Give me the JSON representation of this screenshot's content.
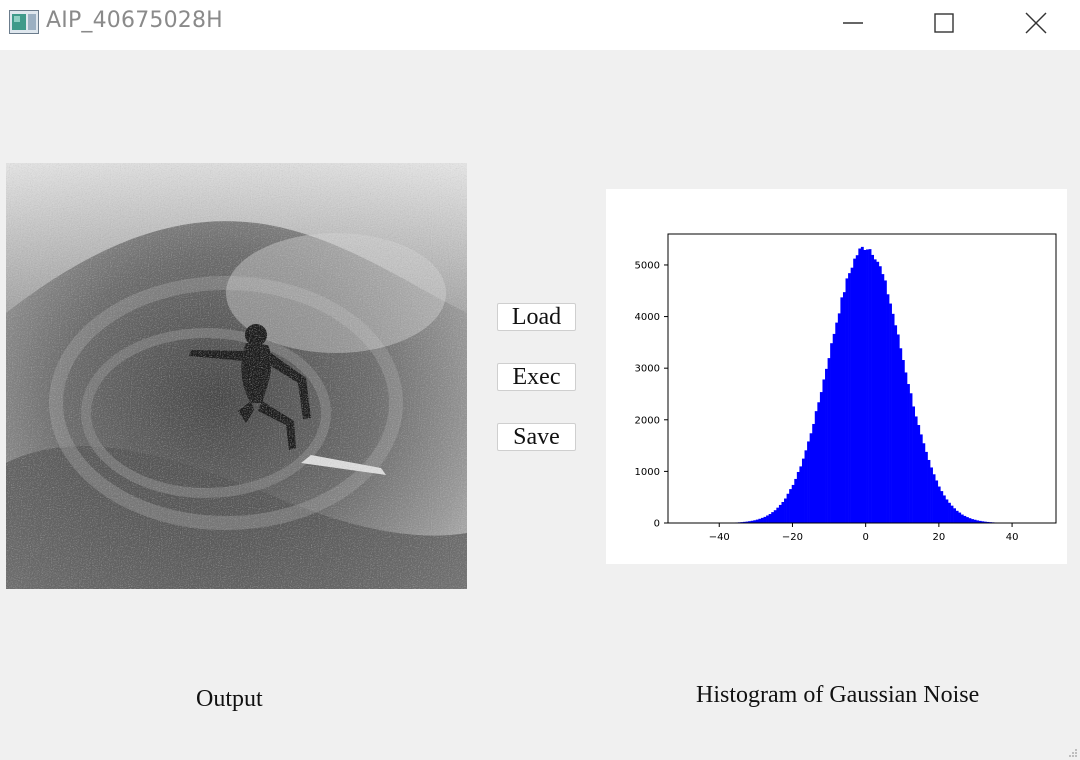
{
  "window": {
    "title": "AIP_40675028H",
    "controls": {
      "minimize_icon": "minimize-icon",
      "maximize_icon": "maximize-icon",
      "close_icon": "close-icon"
    }
  },
  "buttons": {
    "load": "Load",
    "exec": "Exec",
    "save": "Save"
  },
  "output_image": {
    "content": "grayscale noisy photo of a surfer inside a breaking wave"
  },
  "captions": {
    "output": "Output",
    "histogram": "Histogram of Gaussian Noise"
  },
  "chart_data": {
    "type": "bar",
    "title": "",
    "xlabel": "",
    "ylabel": "",
    "xlim": [
      -54,
      52
    ],
    "ylim": [
      0,
      5600
    ],
    "x_ticks": [
      -40,
      -20,
      0,
      20,
      40
    ],
    "x_tick_labels": [
      "−40",
      "−20",
      "0",
      "20",
      "40"
    ],
    "y_ticks": [
      0,
      1000,
      2000,
      3000,
      4000,
      5000
    ],
    "y_tick_labels": [
      "0",
      "1000",
      "2000",
      "3000",
      "4000",
      "5000"
    ],
    "grid": false,
    "bar_color": "#0000ff",
    "distribution": {
      "shape": "gaussian",
      "mean": 0,
      "std_dev": 10,
      "peak_count": 5350,
      "range": [
        -37,
        38
      ]
    }
  }
}
